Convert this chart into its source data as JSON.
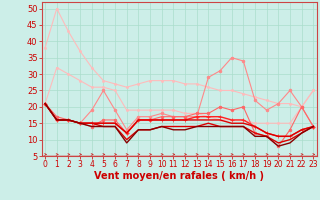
{
  "x": [
    0,
    1,
    2,
    3,
    4,
    5,
    6,
    7,
    8,
    9,
    10,
    11,
    12,
    13,
    14,
    15,
    16,
    17,
    18,
    19,
    20,
    21,
    22,
    23
  ],
  "series": [
    {
      "color": "#ffbbbb",
      "lw": 0.8,
      "marker": "o",
      "ms": 1.5,
      "y": [
        38,
        50,
        43,
        37,
        32,
        28,
        27,
        26,
        27,
        28,
        28,
        28,
        27,
        27,
        26,
        25,
        25,
        24,
        23,
        22,
        21,
        21,
        20,
        25
      ]
    },
    {
      "color": "#ffbbbb",
      "lw": 0.8,
      "marker": "o",
      "ms": 1.5,
      "y": [
        21,
        32,
        30,
        28,
        26,
        26,
        25,
        19,
        19,
        19,
        19,
        19,
        18,
        18,
        17,
        16,
        16,
        16,
        15,
        15,
        15,
        15,
        20,
        25
      ]
    },
    {
      "color": "#ff8888",
      "lw": 0.8,
      "marker": "o",
      "ms": 2.0,
      "y": [
        21,
        16,
        16,
        15,
        19,
        25,
        19,
        13,
        17,
        17,
        18,
        17,
        17,
        17,
        29,
        31,
        35,
        34,
        22,
        19,
        21,
        25,
        20,
        14
      ]
    },
    {
      "color": "#ff6666",
      "lw": 0.8,
      "marker": "o",
      "ms": 2.0,
      "y": [
        21,
        17,
        16,
        15,
        14,
        16,
        16,
        12,
        16,
        16,
        17,
        17,
        17,
        18,
        18,
        20,
        19,
        20,
        12,
        11,
        8,
        13,
        20,
        14
      ]
    },
    {
      "color": "#ff2222",
      "lw": 1.0,
      "marker": "+",
      "ms": 3.0,
      "y": [
        21,
        16,
        16,
        15,
        15,
        15,
        15,
        12,
        16,
        16,
        16,
        16,
        16,
        17,
        17,
        17,
        16,
        16,
        14,
        12,
        11,
        11,
        13,
        14
      ]
    },
    {
      "color": "#dd0000",
      "lw": 1.0,
      "marker": null,
      "ms": 0,
      "y": [
        21,
        16,
        16,
        15,
        15,
        15,
        15,
        12,
        16,
        16,
        16,
        16,
        16,
        16,
        16,
        16,
        15,
        15,
        14,
        12,
        11,
        11,
        13,
        14
      ]
    },
    {
      "color": "#dd0000",
      "lw": 1.0,
      "marker": null,
      "ms": 0,
      "y": [
        21,
        16,
        16,
        15,
        15,
        14,
        14,
        10,
        13,
        13,
        14,
        14,
        14,
        14,
        15,
        14,
        14,
        14,
        12,
        11,
        9,
        10,
        12,
        14
      ]
    },
    {
      "color": "#880000",
      "lw": 1.0,
      "marker": null,
      "ms": 0,
      "y": [
        21,
        16,
        16,
        15,
        14,
        14,
        14,
        9,
        13,
        13,
        14,
        13,
        13,
        14,
        14,
        14,
        14,
        14,
        11,
        11,
        8,
        9,
        12,
        14
      ]
    }
  ],
  "xlabel": "Vent moyen/en rafales ( km/h )",
  "ylim": [
    5,
    52
  ],
  "xlim": [
    -0.3,
    23.3
  ],
  "yticks": [
    5,
    10,
    15,
    20,
    25,
    30,
    35,
    40,
    45,
    50
  ],
  "xticks": [
    0,
    1,
    2,
    3,
    4,
    5,
    6,
    7,
    8,
    9,
    10,
    11,
    12,
    13,
    14,
    15,
    16,
    17,
    18,
    19,
    20,
    21,
    22,
    23
  ],
  "background_color": "#cceee8",
  "grid_color": "#aaddcc",
  "tick_color": "#cc0000",
  "label_color": "#cc0000",
  "xlabel_fontsize": 7,
  "ytick_fontsize": 6,
  "xtick_fontsize": 5.5,
  "spine_color": "#cc4444"
}
